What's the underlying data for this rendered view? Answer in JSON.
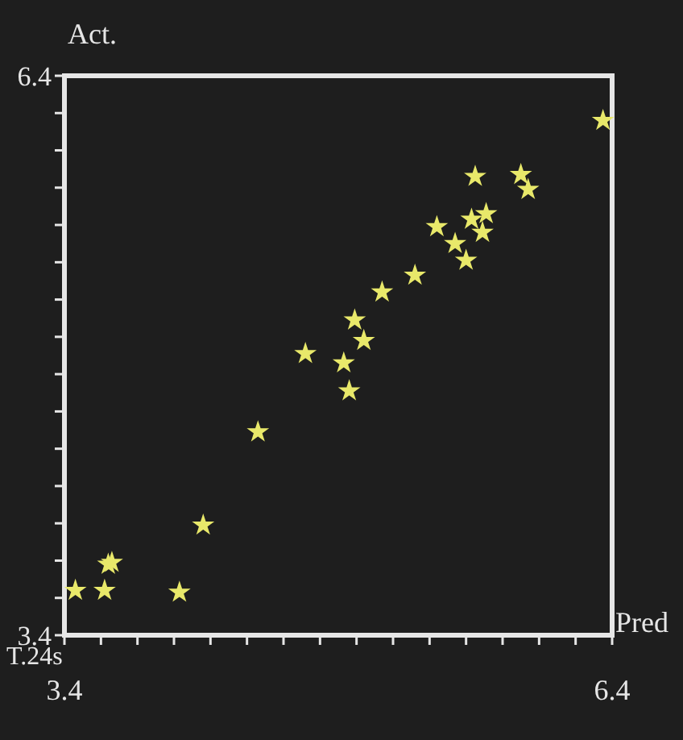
{
  "chart_data": {
    "type": "scatter",
    "xlabel": "Pred",
    "ylabel": "Act.",
    "annotations": [
      "T.24s"
    ],
    "x": [
      6.35,
      5.65,
      5.9,
      5.94,
      5.71,
      5.63,
      5.69,
      5.44,
      5.54,
      5.6,
      5.32,
      5.14,
      4.99,
      5.04,
      4.72,
      4.93,
      4.96,
      4.46,
      4.16,
      3.64,
      3.66,
      3.46,
      3.62,
      4.03
    ],
    "series": [
      {
        "color": "#e8e86a",
        "values": [
          6.16,
          5.86,
          5.87,
          5.79,
          5.66,
          5.63,
          5.56,
          5.59,
          5.5,
          5.41,
          5.33,
          5.24,
          5.09,
          4.98,
          4.91,
          4.86,
          4.71,
          4.49,
          3.99,
          3.78,
          3.79,
          3.64,
          3.64,
          3.63
        ]
      }
    ],
    "xlim": [
      3.4,
      6.4
    ],
    "ylim": [
      3.4,
      6.4
    ],
    "xticks": [
      3.4,
      {
        "value": 3.6,
        "label": null
      },
      {
        "value": 3.8,
        "label": null
      },
      {
        "value": 4.0,
        "label": null
      },
      {
        "value": 4.2,
        "label": null
      },
      {
        "value": 4.4,
        "label": null
      },
      {
        "value": 4.6,
        "label": null
      },
      {
        "value": 4.8,
        "label": null
      },
      {
        "value": 5.0,
        "label": null
      },
      {
        "value": 5.2,
        "label": null
      },
      {
        "value": 5.4,
        "label": null
      },
      {
        "value": 5.6,
        "label": null
      },
      {
        "value": 5.8,
        "label": null
      },
      {
        "value": 6.0,
        "label": null
      },
      {
        "value": 6.2,
        "label": null
      },
      6.4
    ],
    "yticks": [
      3.4,
      {
        "value": 3.6,
        "label": null
      },
      {
        "value": 3.8,
        "label": null
      },
      {
        "value": 4.0,
        "label": null
      },
      {
        "value": 4.2,
        "label": null
      },
      {
        "value": 4.4,
        "label": null
      },
      {
        "value": 4.6,
        "label": null
      },
      {
        "value": 4.8,
        "label": null
      },
      {
        "value": 5.0,
        "label": null
      },
      {
        "value": 5.2,
        "label": null
      },
      {
        "value": 5.4,
        "label": null
      },
      {
        "value": 5.6,
        "label": null
      },
      {
        "value": 5.8,
        "label": null
      },
      {
        "value": 6.0,
        "label": null
      },
      {
        "value": 6.2,
        "label": null
      },
      6.4
    ],
    "grid": false,
    "marker": "star"
  }
}
